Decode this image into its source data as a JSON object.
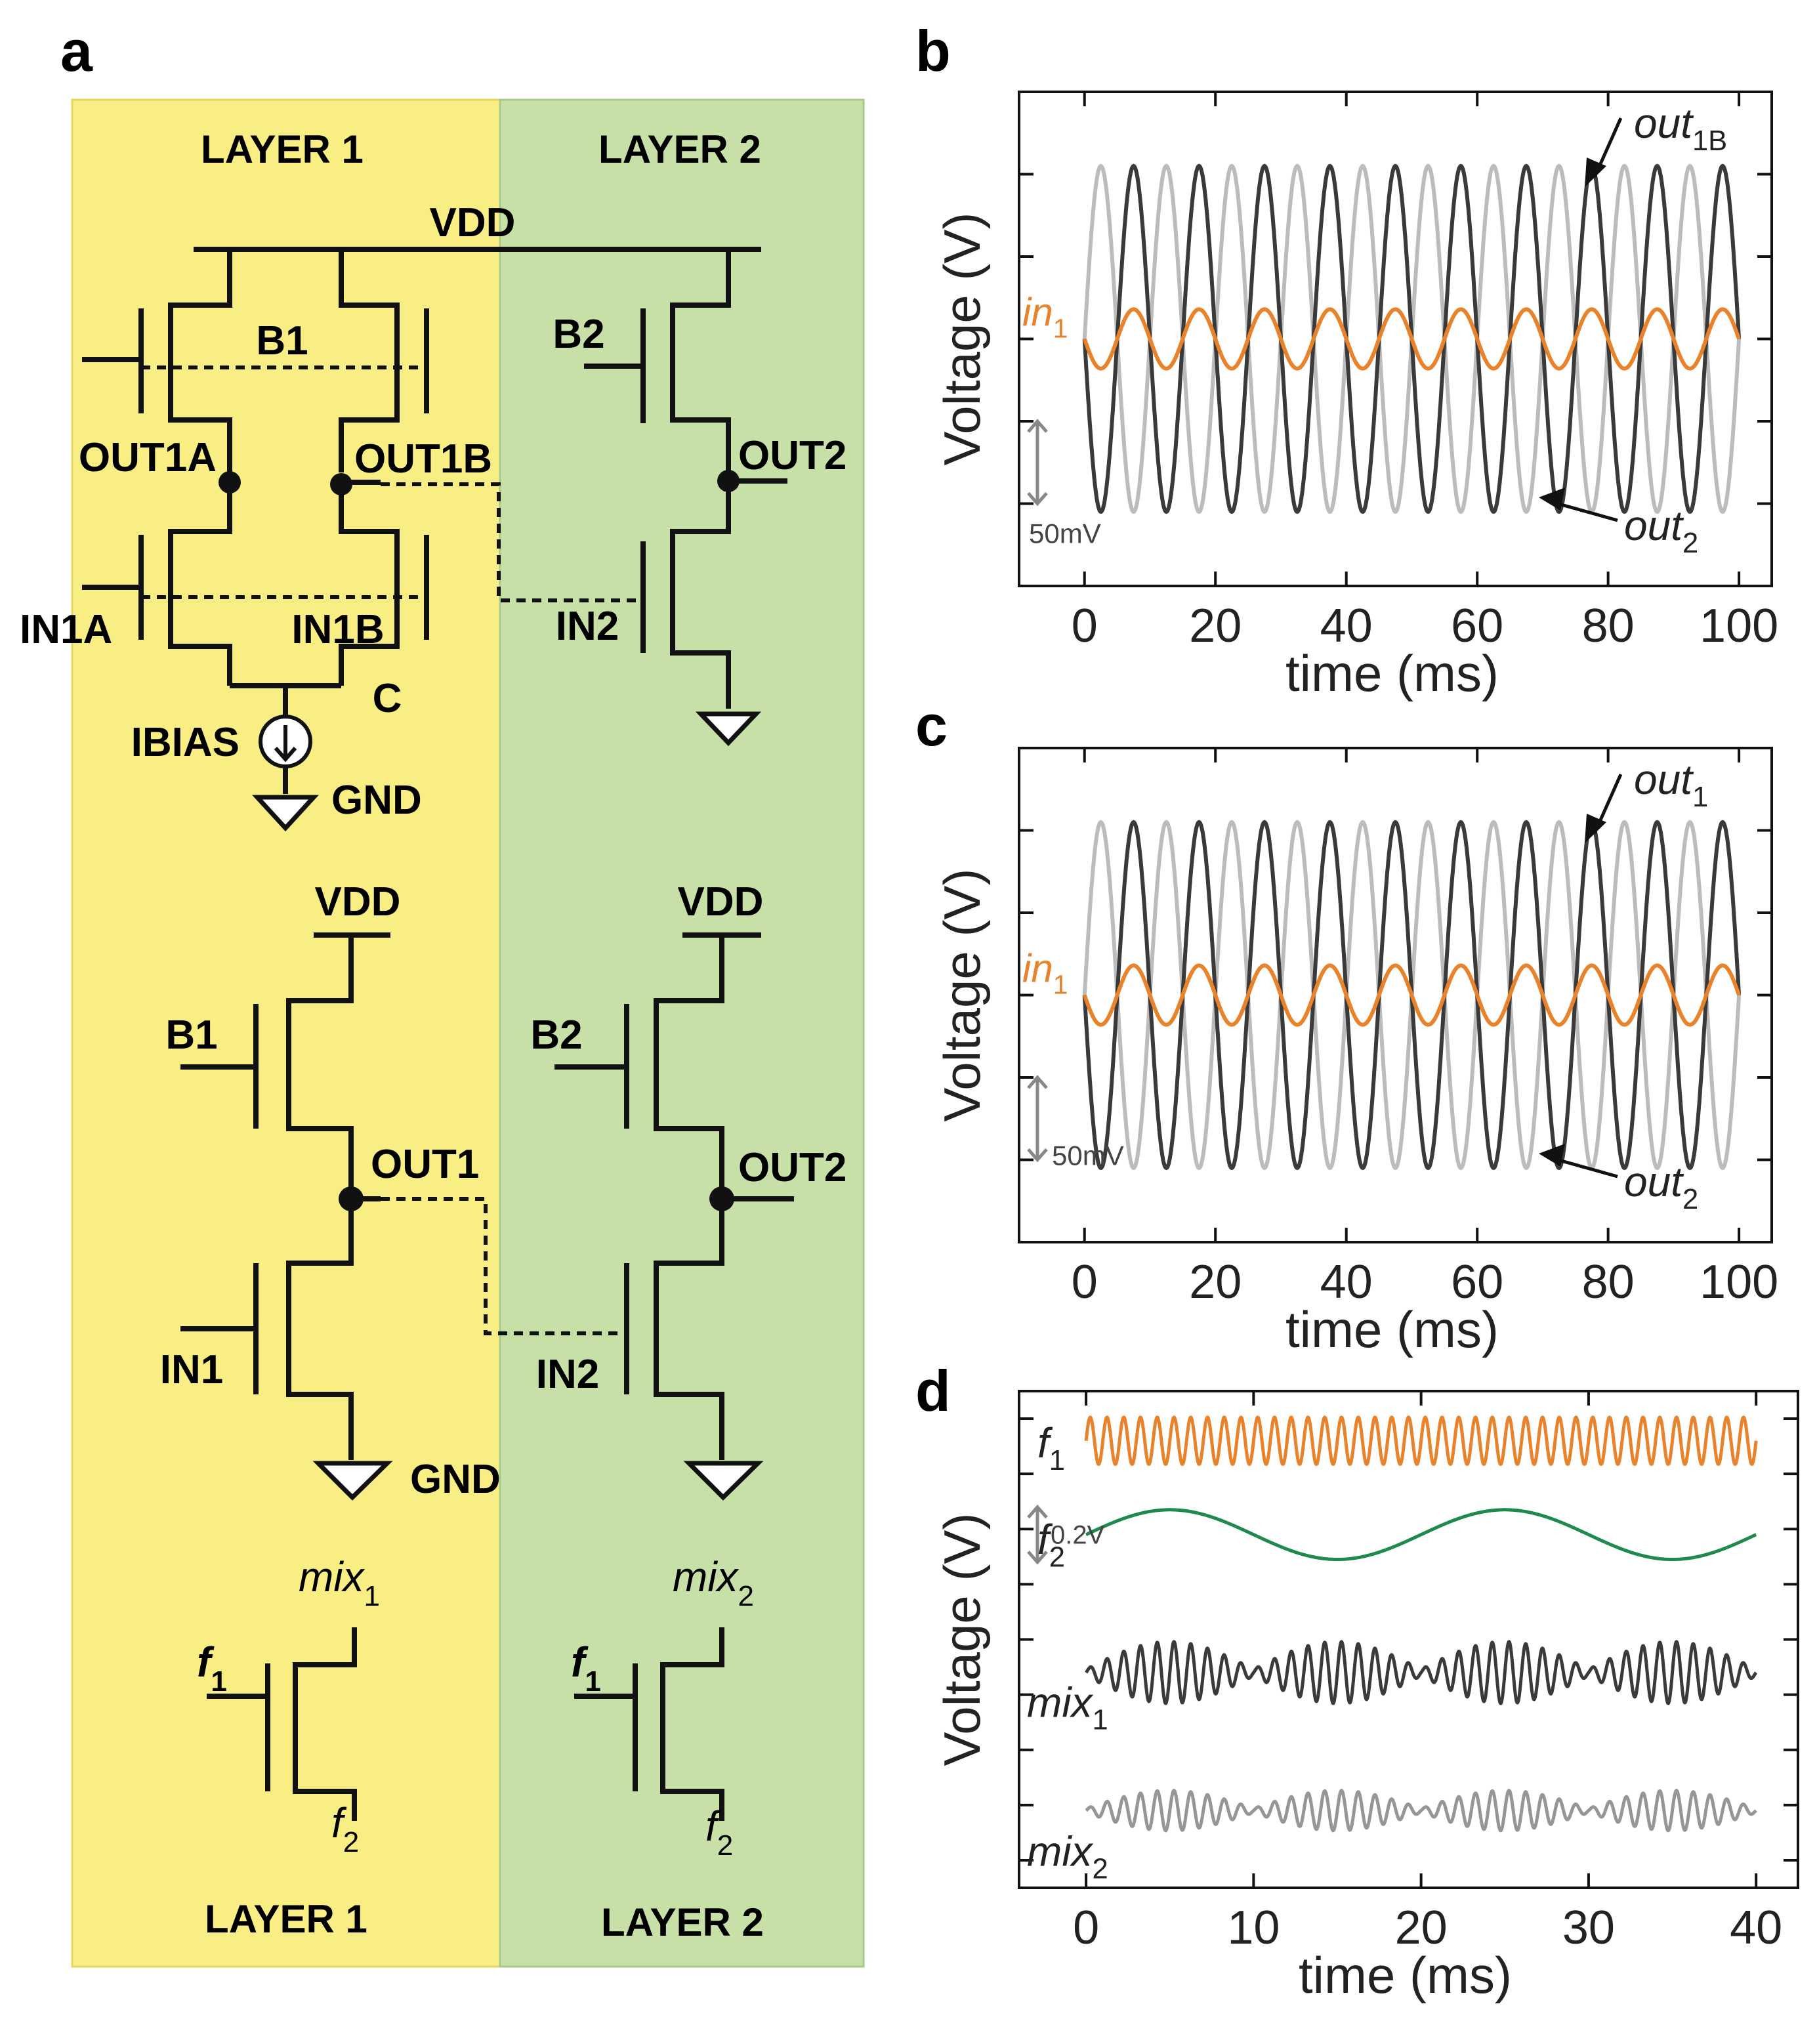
{
  "panel_labels": {
    "a": "a",
    "b": "b",
    "c": "c",
    "d": "d"
  },
  "circuit": {
    "layer1_top": "LAYER 1",
    "layer2_top": "LAYER 2",
    "layer1_bottom": "LAYER 1",
    "layer2_bottom": "LAYER 2",
    "diff": {
      "vdd": "VDD",
      "b1": "B1",
      "b2": "B2",
      "out1a": "OUT1A",
      "out1b": "OUT1B",
      "out2": "OUT2",
      "in1a": "IN1A",
      "in1b": "IN1B",
      "in2": "IN2",
      "c": "C",
      "ibias": "IBIAS",
      "gnd": "GND"
    },
    "inv": {
      "vdd1": "VDD",
      "vdd2": "VDD",
      "b1": "B1",
      "b2": "B2",
      "out1": "OUT1",
      "out2": "OUT2",
      "in1": "IN1",
      "in2": "IN2",
      "gnd": "GND"
    },
    "mixer": {
      "mix1": {
        "main": "mix",
        "sub": "1"
      },
      "mix2": {
        "main": "mix",
        "sub": "2"
      },
      "f1": {
        "main": "f",
        "sub": "1"
      },
      "f2": {
        "main": "f",
        "sub": "2"
      }
    },
    "colors": {
      "layer1": "#f8ee84",
      "layer2": "#c7e0a7",
      "wire": "#111111"
    }
  },
  "chart_data": [
    {
      "id": "b",
      "type": "line",
      "xlabel": "time (ms)",
      "ylabel": "Voltage (V)",
      "xlim": [
        -10,
        105
      ],
      "xticks": [
        0,
        20,
        40,
        60,
        80,
        100
      ],
      "xtick_labels": [
        "0",
        "20",
        "40",
        "60",
        "80",
        "100"
      ],
      "ylim": [
        -0.15,
        0.15
      ],
      "yticks": [
        -0.1,
        -0.05,
        0,
        0.05,
        0.1
      ],
      "scale_bar": "50mV",
      "series": [
        {
          "name": "out_2",
          "label": {
            "main": "out",
            "sub": "2"
          },
          "color": "#bcbcbc",
          "amplitude": 0.105,
          "period_ms": 10,
          "phase": 0.5
        },
        {
          "name": "out_1B",
          "label": {
            "main": "out",
            "sub": "1B"
          },
          "color": "#3a3a3a",
          "amplitude": 0.105,
          "period_ms": 10,
          "phase": 0
        },
        {
          "name": "in_1",
          "label": {
            "main": "in",
            "sub": "1"
          },
          "color": "#e8832c",
          "amplitude": 0.018,
          "period_ms": 10,
          "phase": 0
        }
      ]
    },
    {
      "id": "c",
      "type": "line",
      "xlabel": "time (ms)",
      "ylabel": "Voltage (V)",
      "xlim": [
        -10,
        105
      ],
      "xticks": [
        0,
        20,
        40,
        60,
        80,
        100
      ],
      "xtick_labels": [
        "0",
        "20",
        "40",
        "60",
        "80",
        "100"
      ],
      "ylim": [
        -0.15,
        0.15
      ],
      "yticks": [
        -0.1,
        -0.05,
        0,
        0.05,
        0.1
      ],
      "scale_bar": "50mV",
      "series": [
        {
          "name": "out_2",
          "label": {
            "main": "out",
            "sub": "2"
          },
          "color": "#bcbcbc",
          "amplitude": 0.105,
          "period_ms": 10,
          "phase": 0.5
        },
        {
          "name": "out_1",
          "label": {
            "main": "out",
            "sub": "1"
          },
          "color": "#3a3a3a",
          "amplitude": 0.105,
          "period_ms": 10,
          "phase": 0
        },
        {
          "name": "in_1",
          "label": {
            "main": "in",
            "sub": "1"
          },
          "color": "#e8832c",
          "amplitude": 0.018,
          "period_ms": 10,
          "phase": 0
        }
      ]
    },
    {
      "id": "d",
      "type": "line",
      "xlabel": "time (ms)",
      "ylabel": "Voltage (V)",
      "xlim": [
        -4,
        42.5
      ],
      "xticks": [
        0,
        10,
        20,
        30,
        40
      ],
      "xtick_labels": [
        "0",
        "10",
        "20",
        "30",
        "40"
      ],
      "ylim": [
        -1.0,
        0.8
      ],
      "yticks": [
        -0.9,
        -0.7,
        -0.5,
        -0.3,
        -0.1,
        0.1,
        0.3,
        0.5,
        0.7
      ],
      "scale_bar": "0.2V",
      "series": [
        {
          "name": "f_1",
          "label": {
            "main": "f",
            "sub": "1"
          },
          "color": "#e8832c",
          "kind": "sine",
          "freq_khz": 1.0,
          "amplitude": 0.085,
          "offset": 0.62
        },
        {
          "name": "f_2",
          "label": {
            "main": "f",
            "sub": "2"
          },
          "color": "#1e8a4e",
          "kind": "sine",
          "freq_khz": 0.05,
          "amplitude": 0.09,
          "offset": 0.28
        },
        {
          "name": "mix_1",
          "label": {
            "main": "mix",
            "sub": "1"
          },
          "color": "#3a3a3a",
          "kind": "am",
          "carrier_khz": 1.0,
          "envelope_khz": 0.1,
          "amplitude": 0.1,
          "offset": -0.22
        },
        {
          "name": "mix_2",
          "label": {
            "main": "mix",
            "sub": "2"
          },
          "color": "#969696",
          "kind": "am",
          "carrier_khz": 1.0,
          "envelope_khz": 0.1,
          "amplitude": 0.065,
          "offset": -0.72
        }
      ]
    }
  ]
}
